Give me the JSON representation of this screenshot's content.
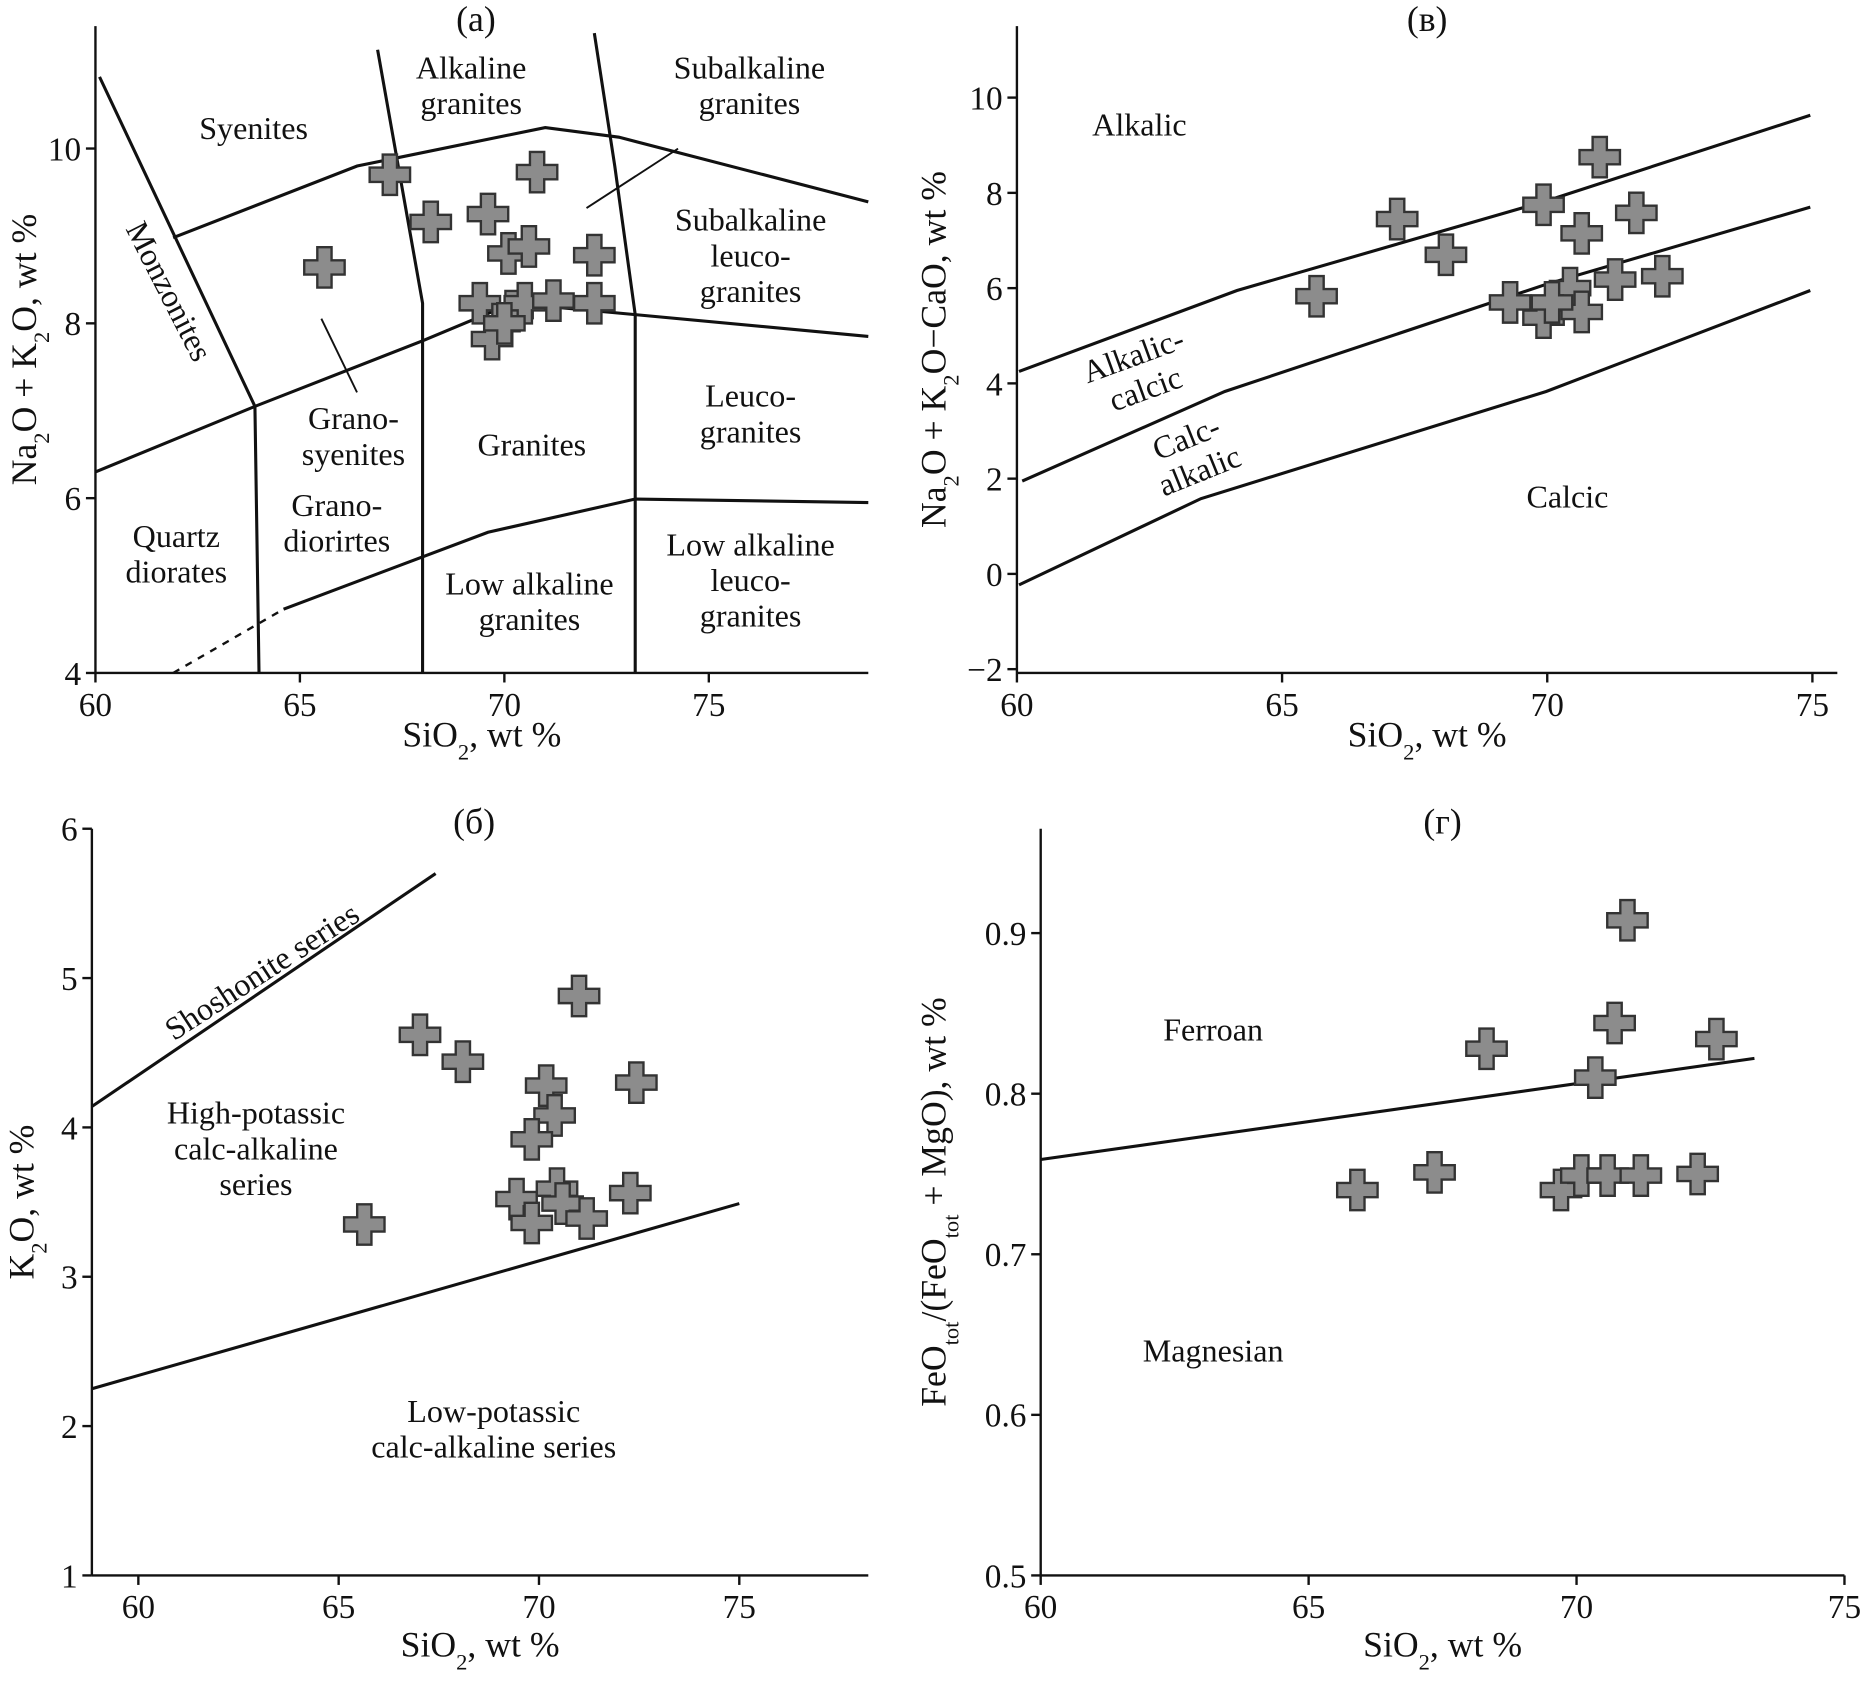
{
  "chart_data": [
    {
      "type": "scatter",
      "title": "(a)",
      "xlabel": [
        "SiO",
        "2",
        ", wt %"
      ],
      "ylabel": [
        "Na",
        "2",
        "O + K",
        "2",
        "O, wt %"
      ],
      "xlim": [
        60,
        78.9
      ],
      "ylim": [
        4,
        11.4
      ],
      "xticks": [
        60,
        65,
        70,
        75
      ],
      "yticks": [
        4,
        6,
        8,
        10
      ],
      "color": "#8c8c8c",
      "x": [
        65.6,
        67.2,
        68.2,
        69.6,
        70.8,
        70.1,
        70.6,
        72.2,
        69.4,
        69.7,
        70.2,
        70.5,
        71.2,
        72.2,
        70.0
      ],
      "values": [
        8.64,
        9.7,
        9.16,
        9.25,
        9.73,
        8.8,
        8.88,
        8.78,
        8.23,
        7.82,
        8.14,
        8.23,
        8.26,
        8.23,
        8.0
      ],
      "boundaries": [
        {
          "x": [
            60.1,
            63.9,
            64.0
          ],
          "y": [
            10.82,
            7.05,
            4.0
          ]
        },
        {
          "x": [
            66.9,
            68.0,
            68.0
          ],
          "y": [
            11.13,
            8.23,
            4.0
          ]
        },
        {
          "x": [
            72.2,
            72.7,
            73.2,
            73.2
          ],
          "y": [
            11.32,
            9.8,
            8.1,
            4.0
          ]
        },
        {
          "x": [
            61.9,
            66.4,
            71.0,
            72.8,
            78.9
          ],
          "y": [
            8.98,
            9.8,
            10.24,
            10.13,
            9.39
          ]
        },
        {
          "x": [
            60,
            63.9,
            68.0,
            70.2,
            73.2,
            78.9
          ],
          "y": [
            6.3,
            7.05,
            7.8,
            8.23,
            8.1,
            7.85
          ]
        },
        {
          "x": [
            64.6,
            69.6,
            73.2,
            78.9
          ],
          "y": [
            4.73,
            5.61,
            5.99,
            5.95
          ]
        },
        {
          "x": [
            61.9,
            64.6
          ],
          "y": [
            4.0,
            4.73
          ],
          "style": "dashed"
        }
      ],
      "annotations": [
        [
          "Syenites"
        ],
        [
          "Alkaline",
          "granites"
        ],
        [
          "Subalkaline",
          "granites"
        ],
        [
          "Subalkaline",
          "leuco-",
          "granites"
        ],
        [
          "Monzonites"
        ],
        [
          "Grano-",
          "syenites"
        ],
        [
          "Granites"
        ],
        [
          "Leuco-",
          "granites"
        ],
        [
          "Quartz",
          "diorates"
        ],
        [
          "Grano-",
          "diorirtes"
        ],
        [
          "Low alkaline",
          "granites"
        ],
        [
          "Low alkaline",
          "leuco-",
          "granites"
        ]
      ]
    },
    {
      "type": "scatter",
      "title": "(в)",
      "xlabel": [
        "SiO",
        "2",
        ", wt %"
      ],
      "ylabel": [
        "Na",
        "2",
        "O + K",
        "2",
        "O−CaO, wt %"
      ],
      "xlim": [
        60,
        75.47
      ],
      "ylim": [
        -2.08,
        11.5
      ],
      "xticks": [
        60,
        65,
        70,
        75
      ],
      "yticks": [
        {
          "value": -2,
          "label": "−2"
        },
        0,
        2,
        4,
        6,
        8,
        10
      ],
      "color": "#8c8c8c",
      "x": [
        65.65,
        67.17,
        68.09,
        69.93,
        70.99,
        70.65,
        71.68,
        69.3,
        69.93,
        70.43,
        70.65,
        70.09,
        71.28,
        72.17
      ],
      "values": [
        5.83,
        7.45,
        6.7,
        7.75,
        8.75,
        7.15,
        7.58,
        5.7,
        5.38,
        6.0,
        5.5,
        5.7,
        6.18,
        6.25
      ],
      "boundaries": [
        {
          "x": [
            60.04,
            64.15,
            69.98,
            74.96
          ],
          "y": [
            4.25,
            5.95,
            7.83,
            9.63
          ]
        },
        {
          "x": [
            60.1,
            63.92,
            69.98,
            74.96
          ],
          "y": [
            1.95,
            3.83,
            6.08,
            7.7
          ]
        },
        {
          "x": [
            60.04,
            63.47,
            69.98,
            74.96
          ],
          "y": [
            -0.23,
            1.58,
            3.83,
            5.95
          ]
        }
      ],
      "annotations": [
        [
          "Alkalic"
        ],
        [
          "Alkalic-",
          "calcic"
        ],
        [
          "Calc-",
          "alkalic"
        ],
        [
          "Calcic"
        ]
      ]
    },
    {
      "type": "scatter",
      "title": "(б)",
      "xlabel": [
        "SiO",
        "2",
        ", wt %"
      ],
      "ylabel": [
        "K",
        "2",
        "O, wt %"
      ],
      "xlim": [
        58.84,
        78.22
      ],
      "ylim": [
        1,
        6
      ],
      "xticks": [
        60,
        65,
        70,
        75
      ],
      "yticks": [
        1,
        2,
        3,
        4,
        5,
        6
      ],
      "color": "#8c8c8c",
      "x": [
        65.64,
        67.03,
        68.1,
        70.18,
        70.39,
        69.82,
        71.0,
        72.43,
        72.28,
        69.44,
        69.82,
        70.45,
        70.59,
        71.19
      ],
      "values": [
        3.35,
        4.62,
        4.44,
        4.28,
        4.08,
        3.92,
        4.88,
        4.3,
        3.56,
        3.52,
        3.36,
        3.59,
        3.49,
        3.39
      ],
      "boundaries": [
        {
          "x": [
            58.84,
            67.42
          ],
          "y": [
            4.14,
            5.7
          ]
        },
        {
          "x": [
            58.84,
            75.0
          ],
          "y": [
            2.25,
            3.49
          ]
        }
      ],
      "annotations": [
        [
          "Shoshonite series"
        ],
        [
          "High-potassic",
          "calc-alkaline",
          "series"
        ],
        [
          "Low-potassic",
          "calc-alkaline series"
        ]
      ]
    },
    {
      "type": "scatter",
      "title": "(г)",
      "xlabel": [
        "SiO",
        "2",
        ", wt %"
      ],
      "ylabel": [
        "FeO",
        "tot",
        "/(FeO",
        "tot",
        " + MgO), wt %"
      ],
      "xlim": [
        60,
        75
      ],
      "ylim": [
        0.5,
        0.965
      ],
      "xticks": [
        60,
        65,
        70,
        75
      ],
      "yticks": [
        0.5,
        0.6,
        0.7,
        0.8,
        0.9
      ],
      "color": "#8c8c8c",
      "x": [
        65.91,
        67.35,
        68.32,
        70.35,
        70.71,
        70.95,
        72.61,
        69.71,
        70.09,
        70.58,
        71.2,
        72.26
      ],
      "values": [
        0.74,
        0.751,
        0.828,
        0.81,
        0.844,
        0.908,
        0.834,
        0.74,
        0.749,
        0.749,
        0.749,
        0.75
      ],
      "boundaries": [
        {
          "x": [
            60.0,
            73.32
          ],
          "y": [
            0.759,
            0.822
          ]
        }
      ],
      "annotations": [
        [
          "Ferroan"
        ],
        [
          "Magnesian"
        ]
      ]
    }
  ]
}
